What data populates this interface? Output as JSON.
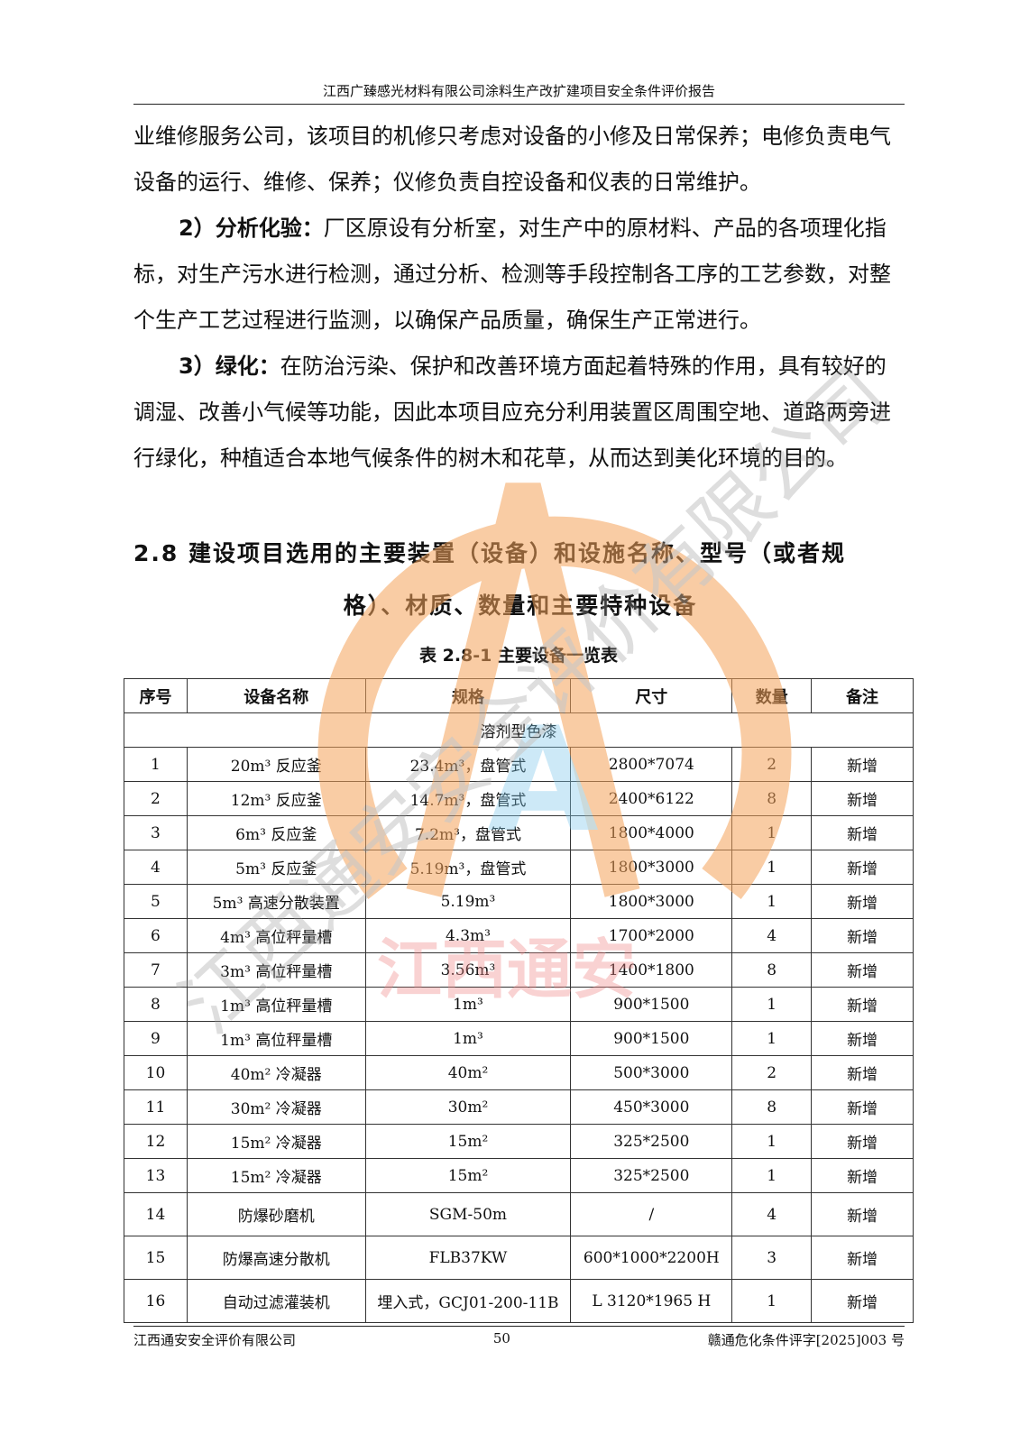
{
  "header": {
    "title": "江西广臻感光材料有限公司涂料生产改扩建项目安全条件评价报告"
  },
  "body": {
    "p1": "业维修服务公司，该项目的机修只考虑对设备的小修及日常保养；电修负责电气设备的运行、维修、保养；仪修负责自控设备和仪表的日常维护。",
    "p2_label": "2）分析化验：",
    "p2": "厂区原设有分析室，对生产中的原材料、产品的各项理化指标，对生产污水进行检测，通过分析、检测等手段控制各工序的工艺参数，对整个生产工艺过程进行监测，以确保产品质量，确保生产正常进行。",
    "p3_label": "3）绿化：",
    "p3": "在防治污染、保护和改善环境方面起着特殊的作用，具有较好的调湿、改善小气候等功能，因此本项目应充分利用装置区周围空地、道路两旁进行绿化，种植适合本地气候条件的树木和花草，从而达到美化环境的目的。"
  },
  "section": {
    "line1": "2.8 建设项目选用的主要装置（设备）和设施名称、型号（或者规",
    "line2": "格）、材质、数量和主要特种设备"
  },
  "table": {
    "caption": "表 2.8-1 主要设备一览表",
    "columns": [
      "序号",
      "设备名称",
      "规格",
      "尺寸",
      "数量",
      "备注"
    ],
    "group": "溶剂型色漆",
    "rows": [
      [
        "1",
        "20m³ 反应釜",
        "23.4m³，盘管式",
        "2800*7074",
        "2",
        "新增"
      ],
      [
        "2",
        "12m³ 反应釜",
        "14.7m³，盘管式",
        "2400*6122",
        "8",
        "新增"
      ],
      [
        "3",
        "6m³ 反应釜",
        "7.2m³，盘管式",
        "1800*4000",
        "1",
        "新增"
      ],
      [
        "4",
        "5m³ 反应釜",
        "5.19m³，盘管式",
        "1800*3000",
        "1",
        "新增"
      ],
      [
        "5",
        "5m³ 高速分散装置",
        "5.19m³",
        "1800*3000",
        "1",
        "新增"
      ],
      [
        "6",
        "4m³ 高位秤量槽",
        "4.3m³",
        "1700*2000",
        "4",
        "新增"
      ],
      [
        "7",
        "3m³ 高位秤量槽",
        "3.56m³",
        "1400*1800",
        "8",
        "新增"
      ],
      [
        "8",
        "1m³ 高位秤量槽",
        "1m³",
        "900*1500",
        "1",
        "新增"
      ],
      [
        "9",
        "1m³ 高位秤量槽",
        "1m³",
        "900*1500",
        "1",
        "新增"
      ],
      [
        "10",
        "40m² 冷凝器",
        "40m²",
        "500*3000",
        "2",
        "新增"
      ],
      [
        "11",
        "30m² 冷凝器",
        "30m²",
        "450*3000",
        "8",
        "新增"
      ],
      [
        "12",
        "15m² 冷凝器",
        "15m²",
        "325*2500",
        "1",
        "新增"
      ],
      [
        "13",
        "15m² 冷凝器",
        "15m²",
        "325*2500",
        "1",
        "新增"
      ],
      [
        "14",
        "防爆砂磨机",
        "SGM-50m",
        "/",
        "4",
        "新增"
      ],
      [
        "15",
        "防爆高速分散机",
        "FLB37KW",
        "600*1000*2200H",
        "3",
        "新增"
      ],
      [
        "16",
        "自动过滤灌装机",
        "埋入式，GCJ01-200-11B",
        "L 3120*1965 H",
        "1",
        "新增"
      ]
    ]
  },
  "footer": {
    "company": "江西通安安全评价有限公司",
    "page": "50",
    "doc_no": "赣通危化条件评字[2025]003 号"
  },
  "watermark": {
    "diagonal_text": "江西通安安全评价有限公司",
    "center_text": "江西通安",
    "logo_letter": "A",
    "colors": {
      "orange": "#f5a35a",
      "blue": "#7cc7ea",
      "pink": "#f08a8a",
      "gray": "#9a9a9a"
    }
  }
}
